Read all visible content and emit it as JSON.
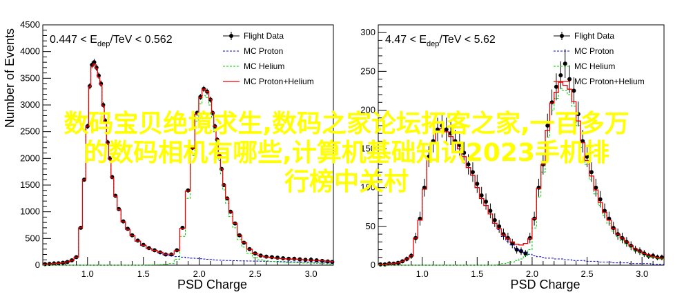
{
  "chart_data": [
    {
      "type": "line",
      "cut_label": "0.447 < E_dep/TeV < 0.562",
      "cut_parts": {
        "lo": "0.447 < E",
        "sub": "dep",
        "hi": "/TeV < 0.562"
      },
      "xlabel": "PSD Charge",
      "ylabel": "Number of Events",
      "xlim": [
        0.6,
        3.2
      ],
      "ylim": [
        0,
        4500
      ],
      "xticks": [
        1.0,
        1.5,
        2.0,
        2.5,
        3.0
      ],
      "yticks": [
        0,
        500,
        1000,
        1500,
        2000,
        2500,
        3000,
        3500,
        4000,
        4500
      ],
      "legend_position": "top-right",
      "x": [
        0.62,
        0.66,
        0.7,
        0.74,
        0.78,
        0.82,
        0.86,
        0.9,
        0.94,
        0.97,
        1.0,
        1.02,
        1.04,
        1.06,
        1.08,
        1.1,
        1.12,
        1.14,
        1.16,
        1.18,
        1.2,
        1.22,
        1.25,
        1.28,
        1.32,
        1.36,
        1.4,
        1.45,
        1.5,
        1.55,
        1.6,
        1.65,
        1.7,
        1.75,
        1.8,
        1.85,
        1.9,
        1.94,
        1.98,
        2.01,
        2.04,
        2.07,
        2.1,
        2.12,
        2.14,
        2.16,
        2.18,
        2.2,
        2.22,
        2.25,
        2.28,
        2.32,
        2.36,
        2.4,
        2.45,
        2.5,
        2.55,
        2.6,
        2.65,
        2.7,
        2.75,
        2.8,
        2.85,
        2.9,
        2.95,
        3.0,
        3.05,
        3.1,
        3.15,
        3.19
      ],
      "series": [
        {
          "name": "Flight Data",
          "color": "#000000",
          "style": "points",
          "values": [
            20,
            25,
            30,
            35,
            45,
            60,
            90,
            150,
            700,
            1600,
            2600,
            3350,
            3750,
            3800,
            3700,
            3550,
            3400,
            3000,
            2700,
            2300,
            2000,
            1650,
            1300,
            1050,
            820,
            680,
            560,
            460,
            380,
            320,
            280,
            240,
            200,
            200,
            280,
            700,
            1400,
            2200,
            2850,
            3150,
            3300,
            3250,
            3100,
            2850,
            2600,
            2350,
            2050,
            1800,
            1500,
            1250,
            1000,
            780,
            560,
            420,
            300,
            220,
            180,
            160,
            150,
            140,
            130,
            120,
            120,
            110,
            100,
            100,
            90,
            80,
            70,
            60
          ]
        },
        {
          "name": "MC Proton",
          "color": "#0000cc",
          "style": "dashed",
          "values": [
            20,
            25,
            30,
            35,
            45,
            60,
            90,
            150,
            700,
            1600,
            2600,
            3340,
            3720,
            3770,
            3680,
            3520,
            3380,
            2980,
            2680,
            2280,
            1980,
            1630,
            1290,
            1040,
            810,
            670,
            550,
            450,
            370,
            310,
            270,
            230,
            190,
            175,
            160,
            150,
            140,
            130,
            125,
            120,
            115,
            110,
            105,
            100,
            98,
            96,
            94,
            92,
            90,
            88,
            86,
            84,
            82,
            80,
            78,
            76,
            74,
            72,
            70,
            68,
            66,
            64,
            62,
            60,
            58,
            56,
            54,
            52,
            50,
            48
          ]
        },
        {
          "name": "MC Helium",
          "color": "#00cc00",
          "style": "dashed",
          "values": [
            0,
            0,
            0,
            0,
            0,
            0,
            0,
            0,
            0,
            0,
            0,
            0,
            0,
            0,
            0,
            0,
            0,
            0,
            0,
            0,
            0,
            0,
            0,
            0,
            0,
            0,
            0,
            0,
            0,
            2,
            5,
            10,
            15,
            30,
            110,
            540,
            1250,
            2050,
            2700,
            3020,
            3180,
            3140,
            3000,
            2760,
            2500,
            2260,
            1960,
            1710,
            1410,
            1160,
            910,
            700,
            480,
            340,
            220,
            140,
            100,
            80,
            70,
            60,
            55,
            50,
            50,
            45,
            40,
            40,
            35,
            30,
            25,
            20
          ]
        },
        {
          "name": "MC Proton+Helium",
          "color": "#ee0000",
          "style": "histogram",
          "values": [
            20,
            25,
            30,
            35,
            45,
            60,
            90,
            150,
            700,
            1600,
            2600,
            3340,
            3720,
            3770,
            3680,
            3520,
            3380,
            2980,
            2680,
            2280,
            1980,
            1630,
            1290,
            1040,
            810,
            670,
            550,
            450,
            370,
            312,
            275,
            240,
            205,
            205,
            270,
            690,
            1390,
            2180,
            2825,
            3140,
            3295,
            3250,
            3105,
            2860,
            2598,
            2356,
            2054,
            1802,
            1500,
            1248,
            996,
            784,
            562,
            420,
            298,
            216,
            174,
            152,
            140,
            128,
            121,
            114,
            112,
            105,
            98,
            96,
            89,
            82,
            75,
            68
          ]
        }
      ]
    },
    {
      "type": "line",
      "cut_label": "4.47 < E_dep/TeV < 5.62",
      "cut_parts": {
        "lo": "4.47 < E",
        "sub": "dep",
        "hi": "/TeV < 5.62"
      },
      "xlabel": "PSD Charge",
      "ylabel": "",
      "xlim": [
        0.6,
        3.2
      ],
      "ylim": [
        0,
        310
      ],
      "xticks": [
        1.0,
        1.5,
        2.0,
        2.5,
        3.0
      ],
      "yticks": [
        0,
        50,
        100,
        150,
        200,
        250,
        300
      ],
      "legend_position": "top-right",
      "x": [
        0.62,
        0.66,
        0.7,
        0.74,
        0.78,
        0.82,
        0.86,
        0.9,
        0.94,
        0.98,
        1.02,
        1.06,
        1.1,
        1.14,
        1.18,
        1.22,
        1.26,
        1.3,
        1.34,
        1.38,
        1.42,
        1.46,
        1.5,
        1.54,
        1.58,
        1.62,
        1.66,
        1.7,
        1.74,
        1.78,
        1.82,
        1.86,
        1.9,
        1.94,
        1.98,
        2.02,
        2.06,
        2.1,
        2.14,
        2.18,
        2.22,
        2.26,
        2.3,
        2.34,
        2.38,
        2.42,
        2.46,
        2.5,
        2.54,
        2.58,
        2.62,
        2.66,
        2.7,
        2.74,
        2.78,
        2.82,
        2.86,
        2.9,
        2.94,
        2.98,
        3.02,
        3.06,
        3.1,
        3.14,
        3.18
      ],
      "series": [
        {
          "name": "Flight Data",
          "color": "#000000",
          "style": "points",
          "values": [
            1,
            1,
            2,
            2,
            3,
            5,
            8,
            12,
            35,
            60,
            100,
            140,
            160,
            175,
            180,
            175,
            170,
            160,
            155,
            145,
            130,
            120,
            105,
            90,
            82,
            70,
            58,
            50,
            40,
            35,
            28,
            20,
            18,
            15,
            35,
            60,
            100,
            130,
            180,
            210,
            230,
            245,
            260,
            240,
            225,
            195,
            160,
            140,
            120,
            100,
            85,
            70,
            60,
            48,
            40,
            35,
            30,
            25,
            20,
            18,
            15,
            12,
            12,
            10,
            10
          ]
        },
        {
          "name": "MC Proton",
          "color": "#0000cc",
          "style": "dashed",
          "values": [
            1,
            1,
            2,
            2,
            3,
            5,
            8,
            12,
            35,
            58,
            98,
            138,
            158,
            172,
            176,
            172,
            166,
            157,
            150,
            140,
            126,
            116,
            100,
            86,
            77,
            66,
            54,
            46,
            37,
            31,
            26,
            21,
            18,
            16,
            14,
            12,
            11,
            10,
            9,
            9,
            8,
            8,
            7,
            7,
            6,
            6,
            6,
            5,
            5,
            5,
            4,
            4,
            4,
            3,
            3,
            3,
            3,
            2,
            2,
            2,
            2,
            2,
            1,
            1,
            1
          ]
        },
        {
          "name": "MC Helium",
          "color": "#00cc00",
          "style": "dashed",
          "values": [
            0,
            0,
            0,
            0,
            0,
            0,
            0,
            0,
            0,
            0,
            0,
            0,
            0,
            0,
            0,
            0,
            0,
            0,
            0,
            0,
            0,
            0,
            0,
            0,
            0,
            0,
            0,
            1,
            2,
            3,
            4,
            6,
            8,
            12,
            20,
            48,
            88,
            120,
            165,
            200,
            215,
            228,
            225,
            220,
            205,
            180,
            152,
            130,
            110,
            92,
            77,
            64,
            54,
            44,
            37,
            32,
            27,
            23,
            19,
            16,
            13,
            11,
            10,
            9,
            8
          ]
        },
        {
          "name": "MC Proton+Helium",
          "color": "#ee0000",
          "style": "histogram",
          "values": [
            1,
            1,
            2,
            2,
            3,
            5,
            8,
            12,
            35,
            58,
            98,
            138,
            158,
            172,
            176,
            172,
            166,
            157,
            150,
            140,
            126,
            116,
            100,
            86,
            77,
            66,
            54,
            47,
            39,
            34,
            30,
            27,
            26,
            28,
            34,
            60,
            99,
            130,
            174,
            209,
            223,
            236,
            232,
            227,
            211,
            186,
            158,
            135,
            115,
            97,
            81,
            68,
            58,
            47,
            40,
            35,
            30,
            25,
            21,
            18,
            15,
            13,
            11,
            10,
            9
          ]
        }
      ]
    }
  ],
  "watermark": {
    "line1": "数码宝贝绝境求生,数码之家论坛拓客之家,一百多万",
    "line2": "的数码相机有哪些,计算机基础知识2023手机排",
    "line3": "行榜中关村"
  }
}
